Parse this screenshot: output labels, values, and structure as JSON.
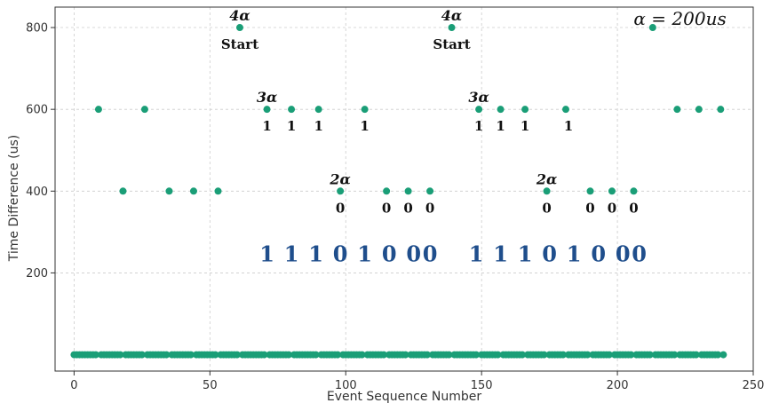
{
  "chart_data": {
    "type": "scatter",
    "xlabel": "Event Sequence Number",
    "ylabel": "Time Difference (us)",
    "xlim": [
      -7,
      250
    ],
    "ylim": [
      -40,
      850
    ],
    "xticks": [
      0,
      50,
      100,
      150,
      200,
      250
    ],
    "yticks": [
      200,
      400,
      600,
      800
    ],
    "grid": true,
    "marker_color": "#1a9e77",
    "baseline_value": 0,
    "baseline_x_range": [
      0,
      239
    ],
    "points": [
      {
        "x": 9,
        "y": 600
      },
      {
        "x": 18,
        "y": 400
      },
      {
        "x": 26,
        "y": 600
      },
      {
        "x": 35,
        "y": 400
      },
      {
        "x": 44,
        "y": 400
      },
      {
        "x": 53,
        "y": 400
      },
      {
        "x": 61,
        "y": 800
      },
      {
        "x": 71,
        "y": 600
      },
      {
        "x": 80,
        "y": 600
      },
      {
        "x": 90,
        "y": 600
      },
      {
        "x": 98,
        "y": 400
      },
      {
        "x": 107,
        "y": 600
      },
      {
        "x": 115,
        "y": 400
      },
      {
        "x": 123,
        "y": 400
      },
      {
        "x": 131,
        "y": 400
      },
      {
        "x": 139,
        "y": 800
      },
      {
        "x": 149,
        "y": 600
      },
      {
        "x": 157,
        "y": 600
      },
      {
        "x": 166,
        "y": 600
      },
      {
        "x": 174,
        "y": 400
      },
      {
        "x": 181,
        "y": 600
      },
      {
        "x": 190,
        "y": 400
      },
      {
        "x": 198,
        "y": 400
      },
      {
        "x": 206,
        "y": 400
      },
      {
        "x": 213,
        "y": 800
      },
      {
        "x": 222,
        "y": 600
      },
      {
        "x": 230,
        "y": 600
      },
      {
        "x": 238,
        "y": 600
      }
    ],
    "annotations": {
      "formula": "α = 200us",
      "alpha_labels": [
        {
          "text": "4α",
          "x": 61,
          "y": 800
        },
        {
          "text": "3α",
          "x": 71,
          "y": 600
        },
        {
          "text": "2α",
          "x": 98,
          "y": 400
        },
        {
          "text": "4α",
          "x": 139,
          "y": 800
        },
        {
          "text": "3α",
          "x": 149,
          "y": 600
        },
        {
          "text": "2α",
          "x": 174,
          "y": 400
        }
      ],
      "start_labels": [
        {
          "text": "Start",
          "x": 61,
          "y": 800
        },
        {
          "text": "Start",
          "x": 139,
          "y": 800
        }
      ],
      "bit_labels": [
        {
          "text": "1",
          "x": 71,
          "y": 600
        },
        {
          "text": "1",
          "x": 80,
          "y": 600
        },
        {
          "text": "1",
          "x": 90,
          "y": 600
        },
        {
          "text": "1",
          "x": 107,
          "y": 600
        },
        {
          "text": "0",
          "x": 98,
          "y": 400
        },
        {
          "text": "0",
          "x": 115,
          "y": 400
        },
        {
          "text": "0",
          "x": 123,
          "y": 400
        },
        {
          "text": "0",
          "x": 131,
          "y": 400
        },
        {
          "text": "1",
          "x": 149,
          "y": 600
        },
        {
          "text": "1",
          "x": 157,
          "y": 600
        },
        {
          "text": "1",
          "x": 166,
          "y": 600
        },
        {
          "text": "1",
          "x": 182,
          "y": 600
        },
        {
          "text": "0",
          "x": 174,
          "y": 400
        },
        {
          "text": "0",
          "x": 190,
          "y": 400
        },
        {
          "text": "0",
          "x": 198,
          "y": 400
        },
        {
          "text": "0",
          "x": 206,
          "y": 400
        }
      ],
      "sequence_labels": [
        {
          "text": "1",
          "x": 71
        },
        {
          "text": "1",
          "x": 80
        },
        {
          "text": "1",
          "x": 89
        },
        {
          "text": "0",
          "x": 98
        },
        {
          "text": "1",
          "x": 107
        },
        {
          "text": "0",
          "x": 116
        },
        {
          "text": "0",
          "x": 125
        },
        {
          "text": "0",
          "x": 131
        },
        {
          "text": "1",
          "x": 148
        },
        {
          "text": "1",
          "x": 157
        },
        {
          "text": "1",
          "x": 166
        },
        {
          "text": "0",
          "x": 175
        },
        {
          "text": "1",
          "x": 184
        },
        {
          "text": "0",
          "x": 193
        },
        {
          "text": "0",
          "x": 202
        },
        {
          "text": "0",
          "x": 208
        }
      ],
      "sequence_y": 245
    }
  }
}
